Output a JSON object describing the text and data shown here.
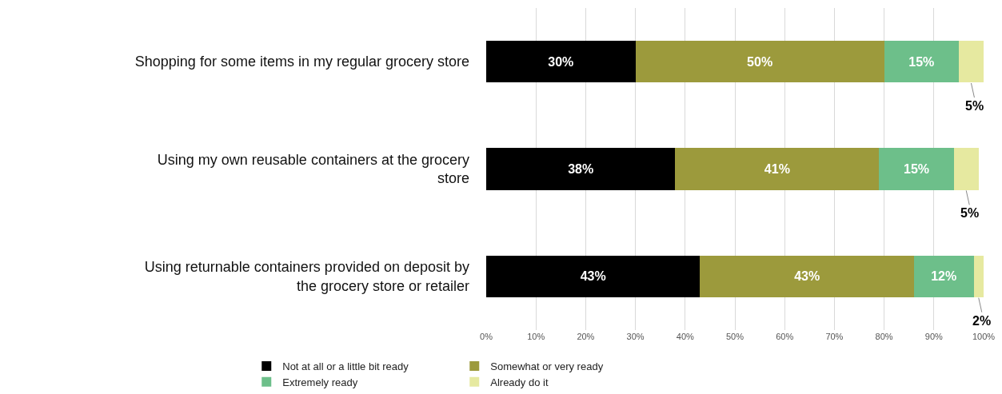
{
  "chart_data": {
    "type": "bar",
    "orientation": "horizontal",
    "stacked": true,
    "grid": "x",
    "legend": "bottom",
    "categories": [
      "Shopping for some items in my regular grocery store",
      "Using my own reusable containers at the grocery store",
      "Using returnable containers provided on deposit by the grocery store or retailer"
    ],
    "series": [
      {
        "name": "Not at all or a little bit ready",
        "color": "#000000",
        "values": [
          30,
          38,
          43
        ],
        "value_labels": [
          "30%",
          "38%",
          "43%"
        ]
      },
      {
        "name": "Somewhat or very ready",
        "color": "#9c9a3c",
        "values": [
          50,
          41,
          43
        ],
        "value_labels": [
          "50%",
          "41%",
          "43%"
        ]
      },
      {
        "name": "Extremely ready",
        "color": "#6dbf8a",
        "values": [
          15,
          15,
          12
        ],
        "value_labels": [
          "15%",
          "15%",
          "12%"
        ]
      },
      {
        "name": "Already do it",
        "color": "#e6e9a0",
        "values": [
          5,
          5,
          2
        ],
        "value_labels": [
          "5%",
          "5%",
          "2%"
        ]
      }
    ],
    "xlim": [
      0,
      100
    ],
    "xticks": [
      {
        "value": 0,
        "label": "0%"
      },
      {
        "value": 10,
        "label": "10%"
      },
      {
        "value": 20,
        "label": "20%"
      },
      {
        "value": 30,
        "label": "30%"
      },
      {
        "value": 40,
        "label": "40%"
      },
      {
        "value": 50,
        "label": "50%"
      },
      {
        "value": 60,
        "label": "60%"
      },
      {
        "value": 70,
        "label": "70%"
      },
      {
        "value": 80,
        "label": "80%"
      },
      {
        "value": 90,
        "label": "90%"
      },
      {
        "value": 100,
        "label": "100%"
      }
    ]
  }
}
